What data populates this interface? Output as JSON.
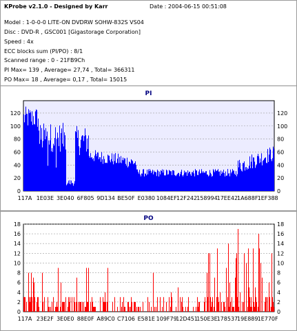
{
  "header": {
    "title": "KProbe v2.1.0 - Designed by Karr",
    "date": "Date : 2004-06-15 00:51:08",
    "model": "Model : 1-0-0-0 LITE-ON DVDRW SOHW-832S  VS04",
    "disc": "Disc : DVD-R , GSC001 [Gigastorage Corporation]",
    "speed": "Speed : 4x",
    "ecc": "ECC blocks sum (PI/PO) : 8/1",
    "range": "Scanned range : 0 - 21FB9Ch",
    "pi_stats": "PI Max= 139 , Average= 27,74 , Total= 366311",
    "po_stats": "PO Max= 18 , Average= 0,17 , Total= 15015"
  },
  "chart_data": [
    {
      "type": "area",
      "title": "PI",
      "ylim": [
        0,
        139
      ],
      "yticks": [
        0,
        20,
        40,
        60,
        80,
        100,
        120
      ],
      "x_tick_labels": [
        "117A",
        "1E03E",
        "3E040",
        "6F805",
        "9D134",
        "BE50F",
        "E0380",
        "1084EF",
        "12F242",
        "158994",
        "17EE42",
        "1A688F",
        "1EF388"
      ],
      "color": "#0000ff",
      "max": 139,
      "average": 27.74,
      "total": 366311,
      "grid": true
    },
    {
      "type": "bar",
      "title": "PO",
      "ylim": [
        0,
        18
      ],
      "yticks": [
        0,
        2,
        4,
        6,
        8,
        10,
        12,
        14,
        16,
        18
      ],
      "x_tick_labels": [
        "117A",
        "23E2F",
        "3E0E0",
        "88E0F",
        "A89C0",
        "C7106",
        "E581E",
        "109F79",
        "12D451",
        "150E3E",
        "178537",
        "19E889",
        "1E770F"
      ],
      "color": "#ff0000",
      "max": 18,
      "average": 0.17,
      "total": 15015,
      "grid": true
    }
  ]
}
